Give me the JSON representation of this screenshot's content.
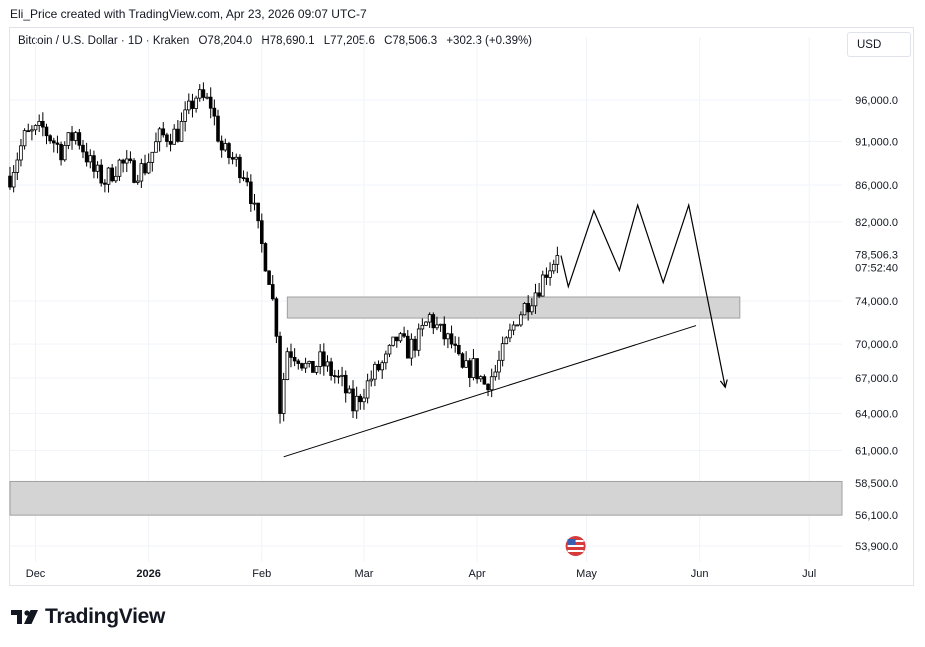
{
  "header": {
    "credit": "Eli_Price created with TradingView.com, Apr 23, 2026 09:07 UTC-7"
  },
  "symbol": {
    "name": "Bitcoin / U.S. Dollar · 1D · Kraken",
    "open": "O78,204.0",
    "high": "H78,690.1",
    "low": "L77,205.6",
    "close": "C78,506.3",
    "change": "+302.3 (+0.39%)"
  },
  "currency_button": "USD",
  "brand": {
    "name": "TradingView"
  },
  "colors": {
    "up": "#000000",
    "down": "#000000",
    "zone_fill": "#d4d4d4",
    "zone_stroke": "#a0a0a0",
    "grid": "#f0f3fa",
    "price_label_bg": "#ffffff"
  },
  "chart_data": {
    "type": "candlestick",
    "title": "Bitcoin / U.S. Dollar · 1D · Kraken",
    "x_ticks": [
      {
        "label": "Dec",
        "date": "2025-12-01",
        "bold": false
      },
      {
        "label": "2026",
        "date": "2026-01-01",
        "bold": true
      },
      {
        "label": "Feb",
        "date": "2026-02-01",
        "bold": false
      },
      {
        "label": "Mar",
        "date": "2026-03-01",
        "bold": false
      },
      {
        "label": "Apr",
        "date": "2026-04-01",
        "bold": false
      },
      {
        "label": "May",
        "date": "2026-05-01",
        "bold": false
      },
      {
        "label": "Jun",
        "date": "2026-06-01",
        "bold": false
      },
      {
        "label": "Jul",
        "date": "2026-07-01",
        "bold": false
      }
    ],
    "x_range": [
      "2025-11-24",
      "2026-07-10"
    ],
    "y_ticks": [
      96000,
      91000,
      86000,
      82000,
      74000,
      70000,
      67000,
      64000,
      61000,
      58500,
      56100,
      53900
    ],
    "y_tick_labels": [
      "96,000.0",
      "91,000.0",
      "86,000.0",
      "82,000.0",
      "74,000.0",
      "70,000.0",
      "67,000.0",
      "64,000.0",
      "61,000.0",
      "58,500.0",
      "56,100.0",
      "53,900.0"
    ],
    "y_scale": "log",
    "y_range": [
      52800,
      101500
    ],
    "current_price": {
      "value": 78506.3,
      "label": "78,506.3",
      "countdown": "07:52:40"
    },
    "grid": true,
    "candle_anchors": [
      [
        "2025-11-24",
        87000
      ],
      [
        "2025-11-28",
        91500
      ],
      [
        "2025-12-03",
        92500
      ],
      [
        "2025-12-08",
        90000
      ],
      [
        "2025-12-12",
        92000
      ],
      [
        "2025-12-17",
        87500
      ],
      [
        "2025-12-20",
        86500
      ],
      [
        "2025-12-24",
        88500
      ],
      [
        "2025-12-28",
        87500
      ],
      [
        "2025-12-31",
        88000
      ],
      [
        "2026-01-04",
        91500
      ],
      [
        "2026-01-09",
        92000
      ],
      [
        "2026-01-14",
        96500
      ],
      [
        "2026-01-18",
        95500
      ],
      [
        "2026-01-21",
        90000
      ],
      [
        "2026-01-25",
        88500
      ],
      [
        "2026-01-28",
        87000
      ],
      [
        "2026-01-31",
        81000
      ],
      [
        "2026-02-03",
        76500
      ],
      [
        "2026-02-05",
        71500
      ],
      [
        "2026-02-06",
        64500
      ],
      [
        "2026-02-08",
        69500
      ],
      [
        "2026-02-11",
        69000
      ],
      [
        "2026-02-14",
        67500
      ],
      [
        "2026-02-17",
        68500
      ],
      [
        "2026-02-20",
        67500
      ],
      [
        "2026-02-23",
        66500
      ],
      [
        "2026-02-26",
        64500
      ],
      [
        "2026-03-01",
        66000
      ],
      [
        "2026-03-04",
        67500
      ],
      [
        "2026-03-07",
        68500
      ],
      [
        "2026-03-10",
        70500
      ],
      [
        "2026-03-13",
        69500
      ],
      [
        "2026-03-16",
        70500
      ],
      [
        "2026-03-19",
        72500
      ],
      [
        "2026-03-22",
        71000
      ],
      [
        "2026-03-25",
        70000
      ],
      [
        "2026-03-28",
        67500
      ],
      [
        "2026-03-31",
        68000
      ],
      [
        "2026-04-03",
        66500
      ],
      [
        "2026-04-06",
        67500
      ],
      [
        "2026-04-09",
        70000
      ],
      [
        "2026-04-12",
        72500
      ],
      [
        "2026-04-15",
        74000
      ],
      [
        "2026-04-18",
        75500
      ],
      [
        "2026-04-20",
        77000
      ],
      [
        "2026-04-23",
        78506
      ]
    ],
    "zones": [
      {
        "from": "2026-02-08",
        "to": "2026-06-12",
        "low": 72400,
        "high": 74400,
        "label": ""
      },
      {
        "from": "2025-11-24",
        "to": "2026-07-10",
        "low": 56100,
        "high": 58600,
        "label": ""
      }
    ],
    "trendline": {
      "from": [
        "2026-02-07",
        60500
      ],
      "to": [
        "2026-05-31",
        71700
      ]
    },
    "projection": [
      [
        "2026-04-24",
        78500
      ],
      [
        "2026-04-26",
        75400
      ],
      [
        "2026-05-03",
        83200
      ],
      [
        "2026-05-10",
        77000
      ],
      [
        "2026-05-15",
        83800
      ],
      [
        "2026-05-22",
        75800
      ],
      [
        "2026-05-29",
        83800
      ],
      [
        "2026-06-08",
        66200
      ]
    ],
    "event_marker": {
      "date": "2026-04-28",
      "icon": "us-flag-icon"
    }
  }
}
